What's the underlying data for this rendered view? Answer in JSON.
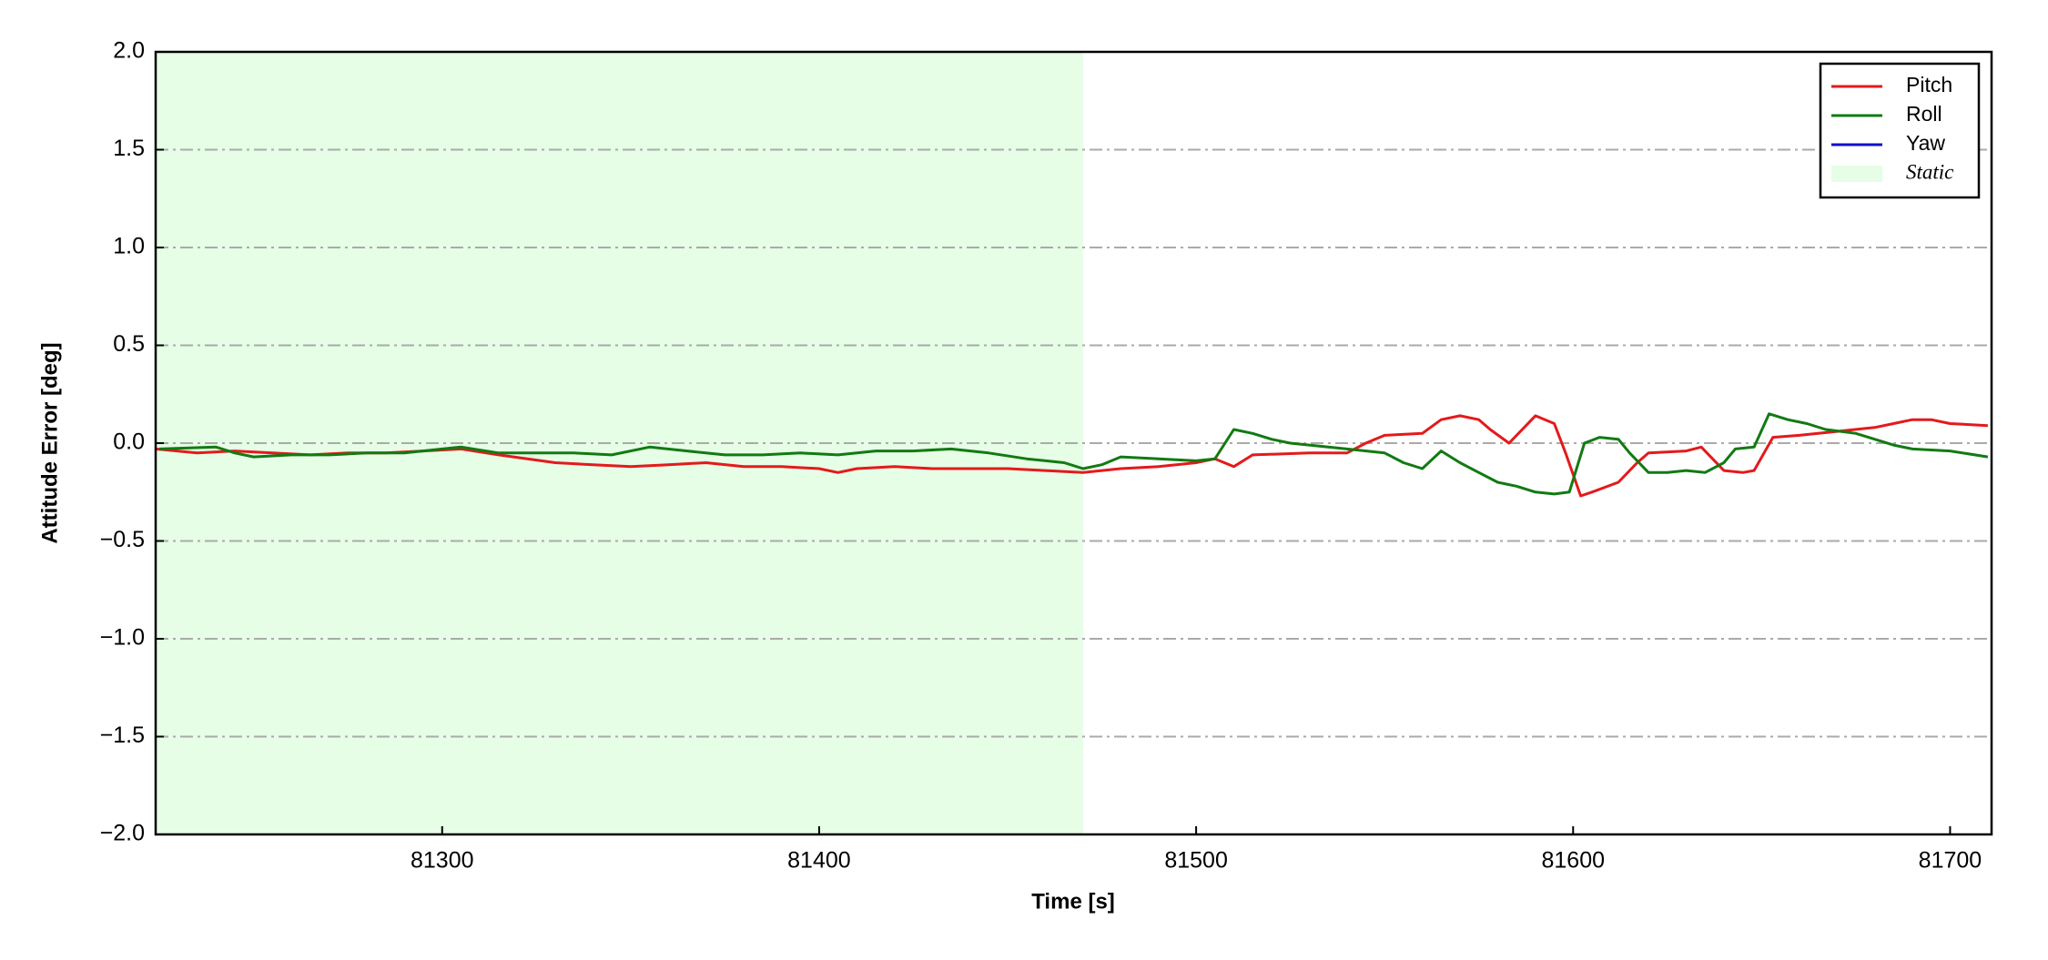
{
  "chart_data": {
    "type": "line",
    "xlabel": "Time [s]",
    "ylabel": "Attitude Error [deg]",
    "xlim": [
      81224,
      81711
    ],
    "xticks": [
      81300,
      81400,
      81500,
      81600,
      81700
    ],
    "ylim": [
      -2,
      2
    ],
    "yticks": [
      {
        "value": -2,
        "label": "−2.0"
      },
      {
        "value": -1.5,
        "label": "−1.5"
      },
      {
        "value": -1,
        "label": "−1.0"
      },
      {
        "value": -0.5,
        "label": "−0.5"
      },
      {
        "value": 0,
        "label": "0.0"
      },
      0.5,
      {
        "value": 1,
        "label": "1.0"
      },
      1.5,
      {
        "value": 2,
        "label": "2.0"
      }
    ],
    "grid": true,
    "legend": "upper right",
    "spans": [
      {
        "name": "Static",
        "start": 81224,
        "end": 81470,
        "color": "#e6fde6"
      }
    ],
    "series": [
      {
        "name": "Pitch",
        "color": "#e31a1c",
        "x": [
          81224,
          81235,
          81245,
          81255,
          81265,
          81275,
          81285,
          81295,
          81305,
          81315,
          81330,
          81340,
          81350,
          81360,
          81370,
          81380,
          81390,
          81400,
          81405,
          81410,
          81420,
          81430,
          81440,
          81450,
          81460,
          81470,
          81480,
          81490,
          81500,
          81505,
          81510,
          81515,
          81530,
          81540,
          81545,
          81550,
          81560,
          81565,
          81570,
          81575,
          81578,
          81583,
          81590,
          81595,
          81598,
          81602,
          81605,
          81612,
          81617,
          81620,
          81630,
          81634,
          81637,
          81640,
          81645,
          81648,
          81653,
          81660,
          81670,
          81680,
          81685,
          81690,
          81695,
          81700,
          81710
        ],
        "values": [
          -0.03,
          -0.05,
          -0.04,
          -0.05,
          -0.06,
          -0.05,
          -0.05,
          -0.04,
          -0.03,
          -0.06,
          -0.1,
          -0.11,
          -0.12,
          -0.11,
          -0.1,
          -0.12,
          -0.12,
          -0.13,
          -0.15,
          -0.13,
          -0.12,
          -0.13,
          -0.13,
          -0.13,
          -0.14,
          -0.15,
          -0.13,
          -0.12,
          -0.1,
          -0.08,
          -0.12,
          -0.06,
          -0.05,
          -0.05,
          0.0,
          0.04,
          0.05,
          0.12,
          0.14,
          0.12,
          0.07,
          0.0,
          0.14,
          0.1,
          -0.05,
          -0.27,
          -0.25,
          -0.2,
          -0.1,
          -0.05,
          -0.04,
          -0.02,
          -0.08,
          -0.14,
          -0.15,
          -0.14,
          0.03,
          0.04,
          0.06,
          0.08,
          0.1,
          0.12,
          0.12,
          0.1,
          0.09
        ]
      },
      {
        "name": "Roll",
        "color": "#127a12",
        "x": [
          81225,
          81240,
          81245,
          81250,
          81260,
          81270,
          81280,
          81290,
          81300,
          81305,
          81315,
          81325,
          81335,
          81345,
          81355,
          81365,
          81375,
          81385,
          81395,
          81405,
          81415,
          81425,
          81435,
          81445,
          81455,
          81465,
          81470,
          81475,
          81480,
          81490,
          81500,
          81505,
          81510,
          81515,
          81520,
          81525,
          81535,
          81540,
          81550,
          81555,
          81560,
          81565,
          81570,
          81575,
          81580,
          81585,
          81590,
          81595,
          81599,
          81603,
          81607,
          81612,
          81615,
          81620,
          81625,
          81630,
          81635,
          81640,
          81643,
          81648,
          81652,
          81657,
          81662,
          81667,
          81675,
          81680,
          81685,
          81690,
          81700,
          81710
        ],
        "values": [
          -0.03,
          -0.02,
          -0.05,
          -0.07,
          -0.06,
          -0.06,
          -0.05,
          -0.05,
          -0.03,
          -0.02,
          -0.05,
          -0.05,
          -0.05,
          -0.06,
          -0.02,
          -0.04,
          -0.06,
          -0.06,
          -0.05,
          -0.06,
          -0.04,
          -0.04,
          -0.03,
          -0.05,
          -0.08,
          -0.1,
          -0.13,
          -0.11,
          -0.07,
          -0.08,
          -0.09,
          -0.08,
          0.07,
          0.05,
          0.02,
          0.0,
          -0.02,
          -0.03,
          -0.05,
          -0.1,
          -0.13,
          -0.04,
          -0.1,
          -0.15,
          -0.2,
          -0.22,
          -0.25,
          -0.26,
          -0.25,
          0.0,
          0.03,
          0.02,
          -0.05,
          -0.15,
          -0.15,
          -0.14,
          -0.15,
          -0.1,
          -0.03,
          -0.02,
          0.15,
          0.12,
          0.1,
          0.07,
          0.05,
          0.02,
          -0.01,
          -0.03,
          -0.04,
          -0.07
        ]
      },
      {
        "name": "Yaw",
        "color": "#1010c8",
        "x": [],
        "values": []
      }
    ]
  }
}
